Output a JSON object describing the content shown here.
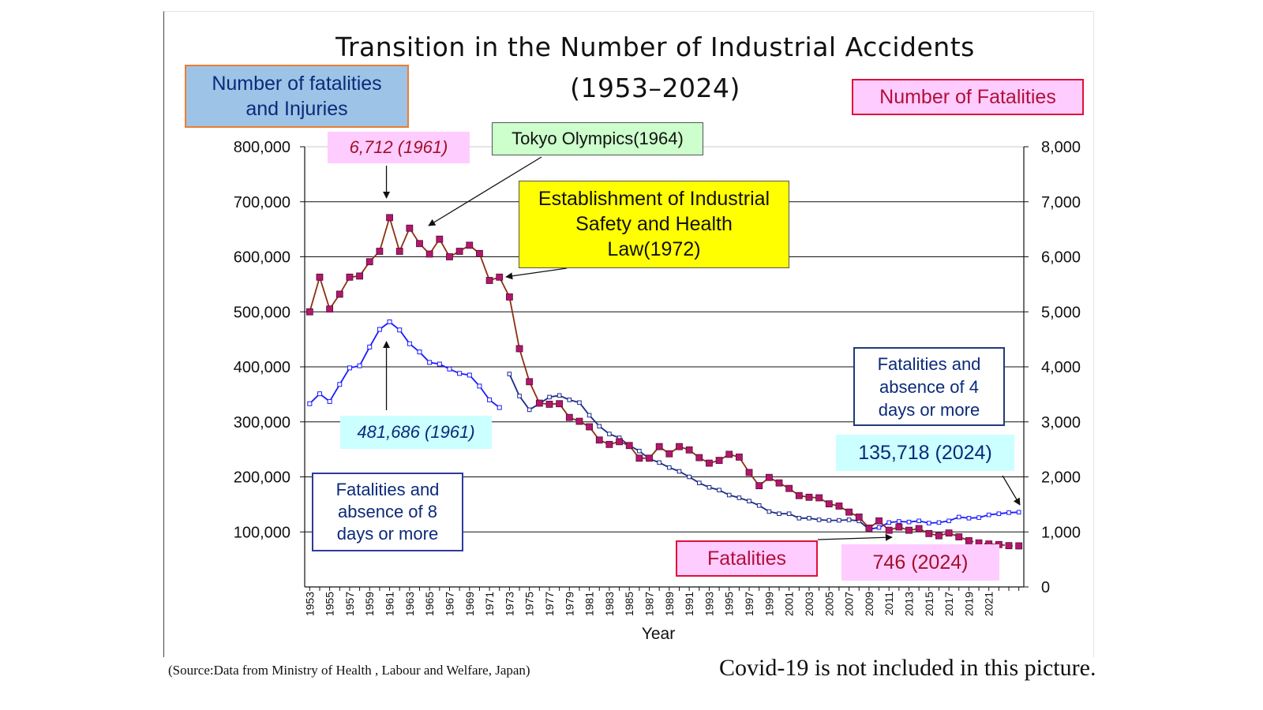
{
  "title_line1": "Transition in the Number of Industrial Accidents",
  "title_line2": "(1953–2024)",
  "left_axis_title": [
    "Number of fatalities",
    "and Injuries"
  ],
  "right_axis_title": "Number of Fatalities",
  "annotations": {
    "peak_fatalities": "6,712 (1961)",
    "tokyo_olympics": "Tokyo Olympics(1964)",
    "law": [
      "Establishment of Industrial",
      "Safety and Health",
      "Law(1972)"
    ],
    "peak_injuries": "481,686 (1961)",
    "series_8days": [
      "Fatalities and",
      "absence of  8",
      "days or more"
    ],
    "series_4days": [
      "Fatalities and",
      "absence of 4",
      "days or more"
    ],
    "injuries_2024": "135,718 (2024)",
    "fatalities_label": "Fatalities",
    "fatalities_2024": "746 (2024)"
  },
  "source": "(Source:Data from Ministry of Health , Labour and Welfare, Japan)",
  "note": "Covid-19 is not included in this picture.",
  "colors": {
    "fatalities_line": "#8b3010",
    "fatalities_marker": "#b0186e",
    "injuries_8days": "#1a1aff",
    "injuries_4days_early": "#1a2a8a",
    "injuries_4days_late": "#1a1aff"
  },
  "chart_data": {
    "type": "line",
    "xlabel": "Year",
    "x_tick_labels": [
      "1953",
      "1955",
      "1957",
      "1959",
      "1961",
      "1963",
      "1965",
      "1967",
      "1969",
      "1971",
      "1973",
      "1975",
      "1977",
      "1979",
      "1981",
      "1983",
      "1985",
      "1987",
      "1989",
      "1991",
      "1993",
      "1995",
      "1997",
      "1999",
      "2001",
      "2003",
      "2005",
      "2007",
      "2009",
      "2011",
      "2013",
      "2015",
      "2017",
      "2019",
      "2021"
    ],
    "x_range": [
      1953,
      2024
    ],
    "left_axis": {
      "ylim": [
        0,
        800000
      ],
      "ticks": [
        "800,000",
        "700,000",
        "600,000",
        "500,000",
        "400,000",
        "300,000",
        "200,000",
        "100,000"
      ]
    },
    "right_axis": {
      "ylim": [
        0,
        8000
      ],
      "ticks": [
        "8,000",
        "7,000",
        "6,000",
        "5,000",
        "4,000",
        "3,000",
        "2,000",
        "1,000",
        "0"
      ]
    },
    "grid": true,
    "series": [
      {
        "name": "Fatalities",
        "axis": "right",
        "x": [
          1953,
          1954,
          1955,
          1956,
          1957,
          1958,
          1959,
          1960,
          1961,
          1962,
          1963,
          1964,
          1965,
          1966,
          1967,
          1968,
          1969,
          1970,
          1971,
          1972,
          1973,
          1974,
          1975,
          1976,
          1977,
          1978,
          1979,
          1980,
          1981,
          1982,
          1983,
          1984,
          1985,
          1986,
          1987,
          1988,
          1989,
          1990,
          1991,
          1992,
          1993,
          1994,
          1995,
          1996,
          1997,
          1998,
          1999,
          2000,
          2001,
          2002,
          2003,
          2004,
          2005,
          2006,
          2007,
          2008,
          2009,
          2010,
          2011,
          2012,
          2013,
          2014,
          2015,
          2016,
          2017,
          2018,
          2019,
          2020,
          2021,
          2022,
          2023,
          2024
        ],
        "values": [
          5000,
          5630,
          5050,
          5320,
          5630,
          5650,
          5910,
          6100,
          6712,
          6100,
          6520,
          6240,
          6050,
          6320,
          6000,
          6100,
          6210,
          6060,
          5570,
          5630,
          5270,
          4330,
          3730,
          3340,
          3320,
          3330,
          3080,
          3010,
          2910,
          2670,
          2590,
          2640,
          2570,
          2340,
          2340,
          2550,
          2420,
          2550,
          2490,
          2350,
          2250,
          2300,
          2410,
          2360,
          2080,
          1840,
          1990,
          1890,
          1790,
          1660,
          1630,
          1620,
          1510,
          1470,
          1360,
          1270,
          1070,
          1200,
          1030,
          1090,
          1030,
          1060,
          970,
          930,
          980,
          910,
          840,
          800,
          780,
          770,
          750,
          746
        ]
      },
      {
        "name": "Fatalities and absence of  8 days or more",
        "axis": "left",
        "x": [
          1953,
          1954,
          1955,
          1956,
          1957,
          1958,
          1959,
          1960,
          1961,
          1962,
          1963,
          1964,
          1965,
          1966,
          1967,
          1968,
          1969,
          1970,
          1971,
          1972
        ],
        "values": [
          333000,
          351000,
          337000,
          368000,
          398000,
          402000,
          436000,
          468000,
          481686,
          467000,
          442000,
          427000,
          408000,
          405000,
          396000,
          388000,
          385000,
          365000,
          340000,
          326000
        ]
      },
      {
        "name": "Fatalities and absence of 4 days or more",
        "axis": "left",
        "x": [
          1973,
          1974,
          1975,
          1976,
          1977,
          1978,
          1979,
          1980,
          1981,
          1982,
          1983,
          1984,
          1985,
          1986,
          1987,
          1988,
          1989,
          1990,
          1991,
          1992,
          1993,
          1994,
          1995,
          1996,
          1997,
          1998,
          1999,
          2000,
          2001,
          2002,
          2003,
          2004,
          2005,
          2006,
          2007,
          2008,
          2009,
          2010,
          2011,
          2012,
          2013,
          2014,
          2015,
          2016,
          2017,
          2018,
          2019,
          2020,
          2021,
          2022,
          2023,
          2024
        ],
        "values": [
          387000,
          347000,
          322000,
          333000,
          345000,
          348000,
          340000,
          335000,
          312000,
          292000,
          278000,
          271000,
          257000,
          247000,
          233000,
          226000,
          217000,
          210000,
          200000,
          189000,
          181000,
          176000,
          167000,
          162000,
          156000,
          148000,
          137000,
          133000,
          133000,
          125000,
          125000,
          122000,
          121000,
          121000,
          122000,
          120000,
          105000,
          108000,
          117000,
          119000,
          118000,
          120000,
          116000,
          117000,
          120000,
          127000,
          125000,
          126000,
          131000,
          133000,
          135000,
          135718
        ]
      }
    ]
  }
}
